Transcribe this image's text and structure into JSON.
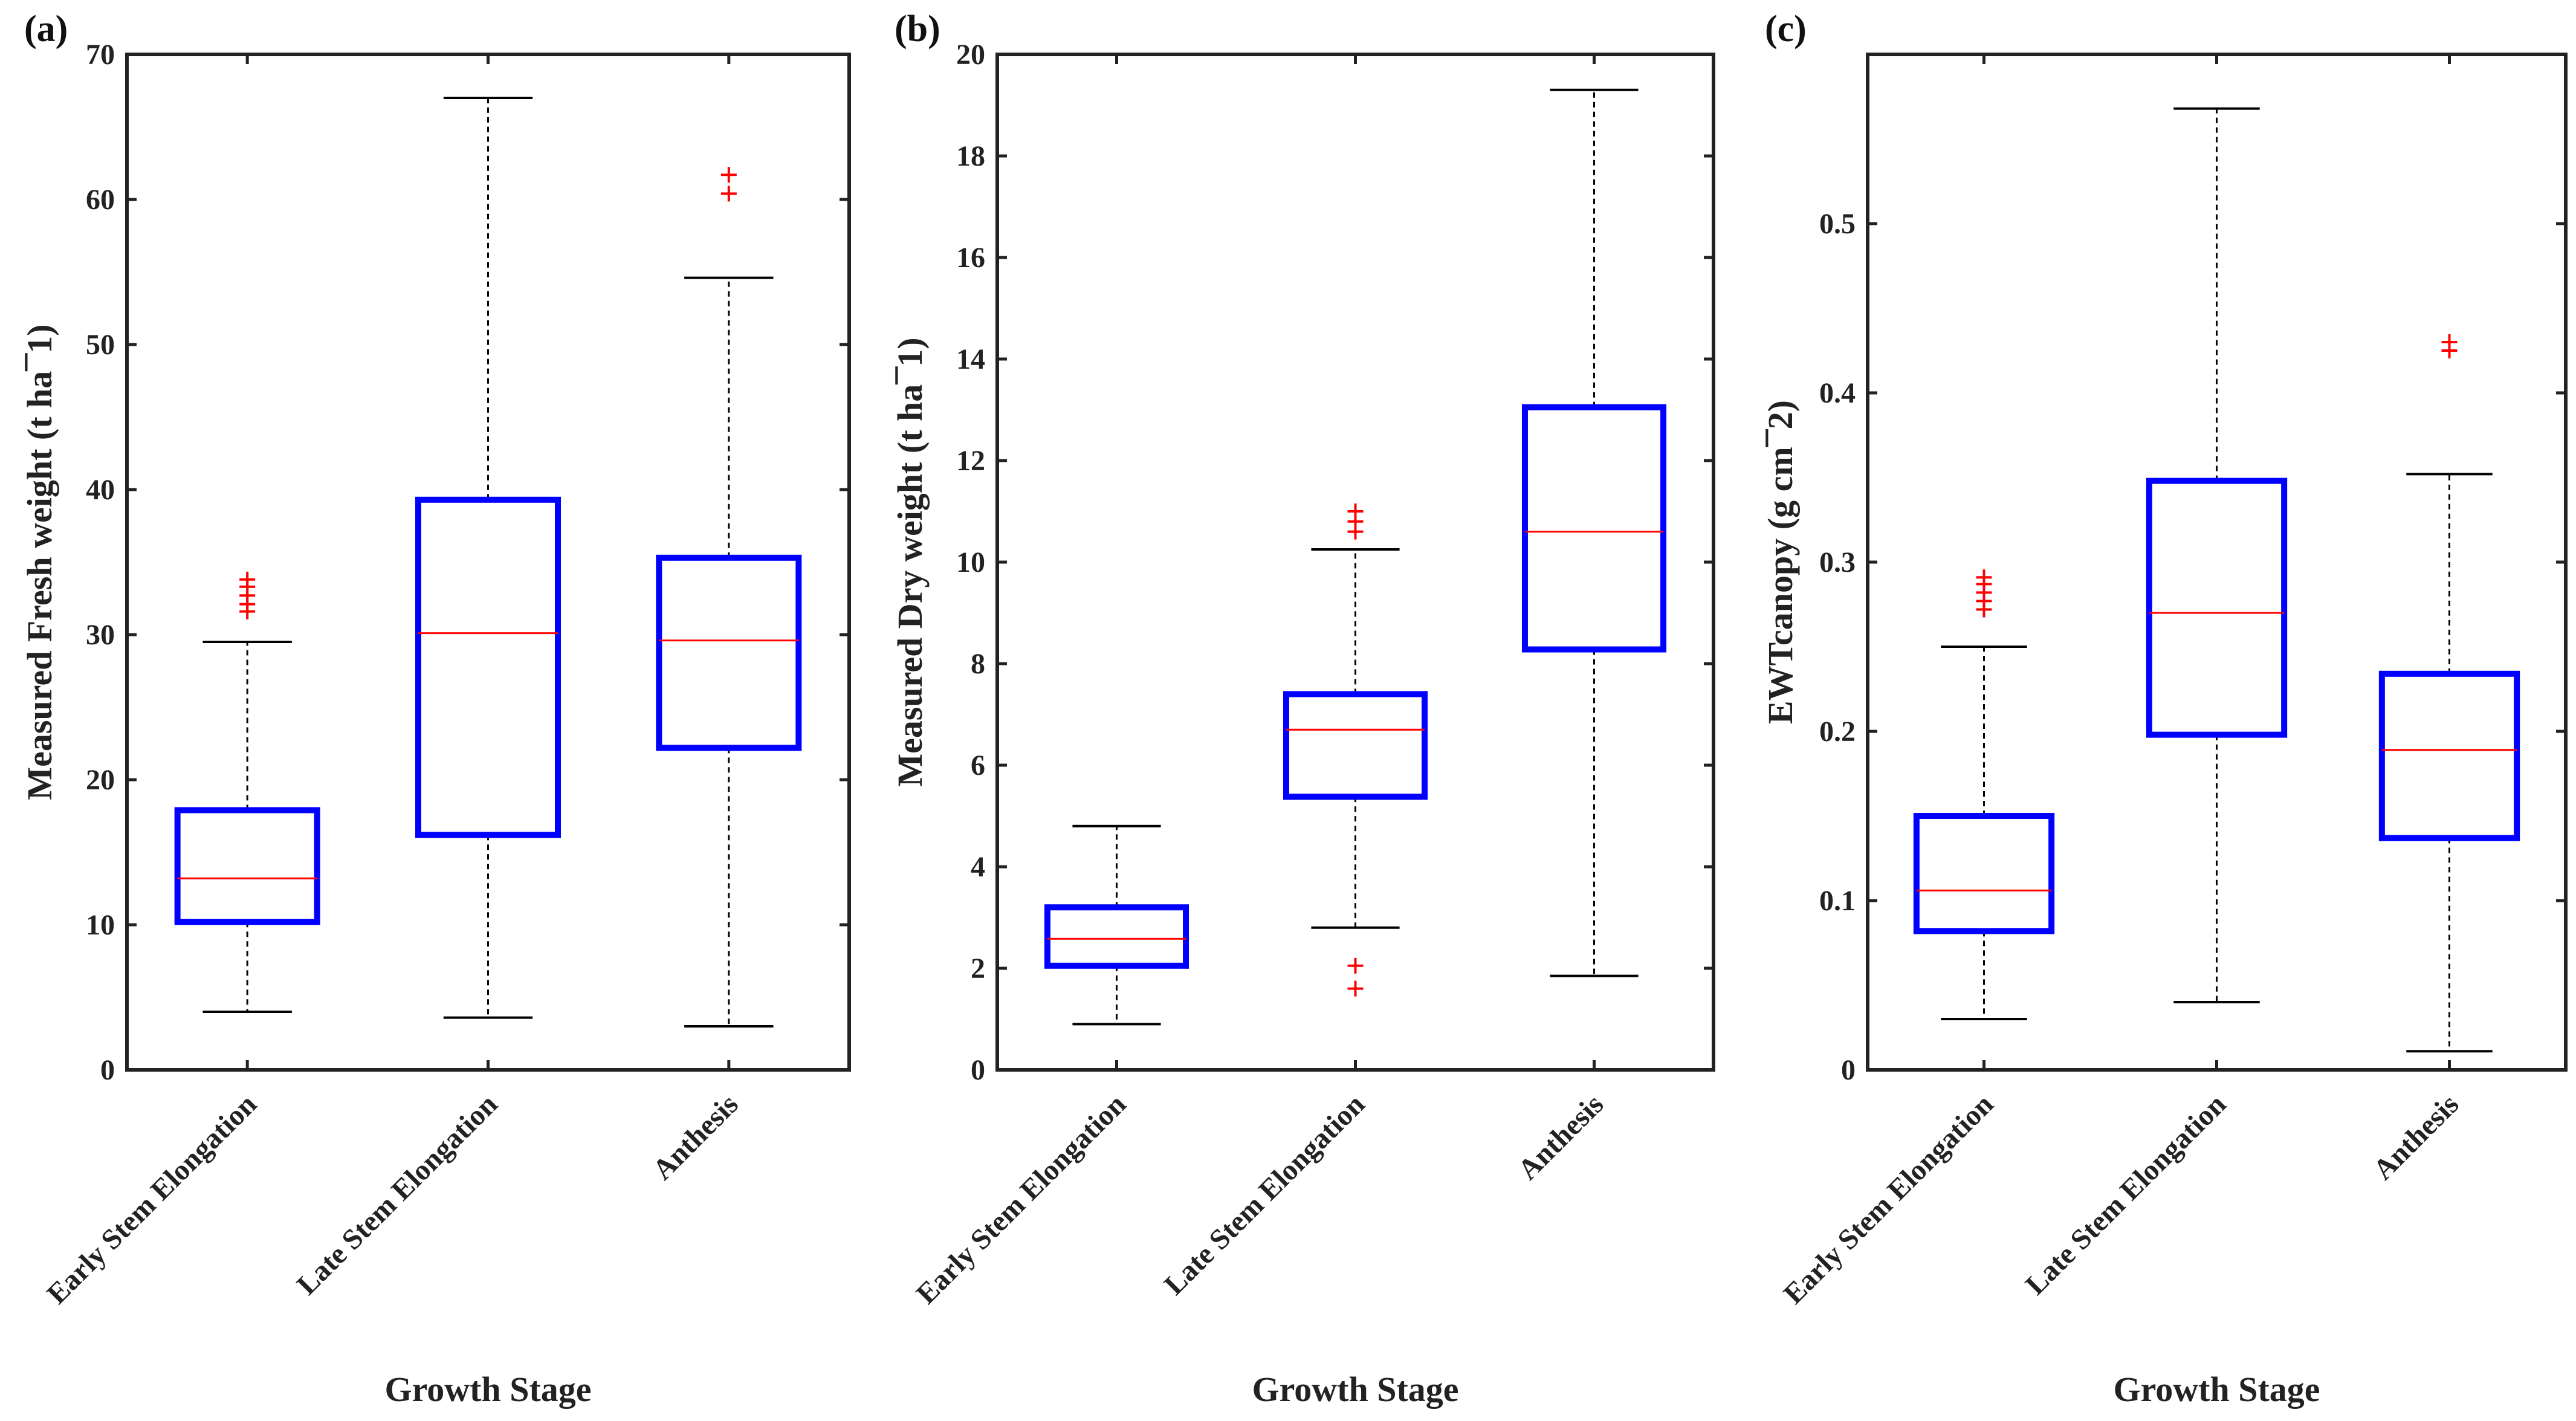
{
  "figure": {
    "xlabel": "Growth Stage",
    "categories": [
      "Early Stem Elongation",
      "Late Stem Elongation",
      "Anthesis"
    ]
  },
  "colors": {
    "box": "#0000ff",
    "median": "#ff0000",
    "whisker": "#000000",
    "outlier": "#ff0000",
    "axes": "#222222"
  },
  "chart_data": [
    {
      "type": "box",
      "panel": "(a)",
      "title": "",
      "xlabel": "Growth Stage",
      "ylabel": "Measured Fresh weight (t ha¯1)",
      "ylim": [
        0,
        70
      ],
      "yticks": [
        0,
        10,
        20,
        30,
        40,
        50,
        60,
        70
      ],
      "categories": [
        "Early Stem Elongation",
        "Late Stem Elongation",
        "Anthesis"
      ],
      "boxes": [
        {
          "name": "Early Stem Elongation",
          "whisker_low": 4.0,
          "q1": 10.2,
          "median": 13.2,
          "q3": 17.9,
          "whisker_high": 29.5,
          "outliers": [
            31.6,
            32.1,
            32.7,
            33.3,
            33.8
          ]
        },
        {
          "name": "Late Stem Elongation",
          "whisker_low": 3.6,
          "q1": 16.2,
          "median": 30.1,
          "q3": 39.3,
          "whisker_high": 67.0,
          "outliers": []
        },
        {
          "name": "Anthesis",
          "whisker_low": 3.0,
          "q1": 22.2,
          "median": 29.6,
          "q3": 35.3,
          "whisker_high": 54.6,
          "outliers": [
            60.4,
            61.7
          ]
        }
      ]
    },
    {
      "type": "box",
      "panel": "(b)",
      "title": "",
      "xlabel": "Growth Stage",
      "ylabel": "Measured Dry weight (t ha¯1)",
      "ylim": [
        0,
        20
      ],
      "yticks": [
        0,
        2,
        4,
        6,
        8,
        10,
        12,
        14,
        16,
        18,
        20
      ],
      "categories": [
        "Early Stem Elongation",
        "Late Stem Elongation",
        "Anthesis"
      ],
      "boxes": [
        {
          "name": "Early Stem Elongation",
          "whisker_low": 0.9,
          "q1": 2.05,
          "median": 2.58,
          "q3": 3.2,
          "whisker_high": 4.8,
          "outliers": []
        },
        {
          "name": "Late Stem Elongation",
          "whisker_low": 2.8,
          "q1": 5.38,
          "median": 6.7,
          "q3": 7.4,
          "whisker_high": 10.25,
          "outliers": [
            1.6,
            2.05,
            10.6,
            10.8,
            11.0
          ]
        },
        {
          "name": "Anthesis",
          "whisker_low": 1.85,
          "q1": 8.28,
          "median": 10.6,
          "q3": 13.05,
          "whisker_high": 19.3,
          "outliers": []
        }
      ]
    },
    {
      "type": "box",
      "panel": "(c)",
      "title": "",
      "xlabel": "Growth Stage",
      "ylabel": "EWTcanopy (g cm¯2)",
      "ylim": [
        0,
        0.6
      ],
      "yticks": [
        0,
        0.1,
        0.2,
        0.3,
        0.4,
        0.5
      ],
      "categories": [
        "Early Stem Elongation",
        "Late Stem Elongation",
        "Anthesis"
      ],
      "boxes": [
        {
          "name": "Early Stem Elongation",
          "whisker_low": 0.03,
          "q1": 0.082,
          "median": 0.106,
          "q3": 0.15,
          "whisker_high": 0.25,
          "outliers": [
            0.272,
            0.277,
            0.282,
            0.287,
            0.291
          ]
        },
        {
          "name": "Late Stem Elongation",
          "whisker_low": 0.04,
          "q1": 0.198,
          "median": 0.27,
          "q3": 0.348,
          "whisker_high": 0.568,
          "outliers": []
        },
        {
          "name": "Anthesis",
          "whisker_low": 0.011,
          "q1": 0.137,
          "median": 0.189,
          "q3": 0.234,
          "whisker_high": 0.352,
          "outliers": [
            0.425,
            0.43
          ]
        }
      ]
    }
  ]
}
